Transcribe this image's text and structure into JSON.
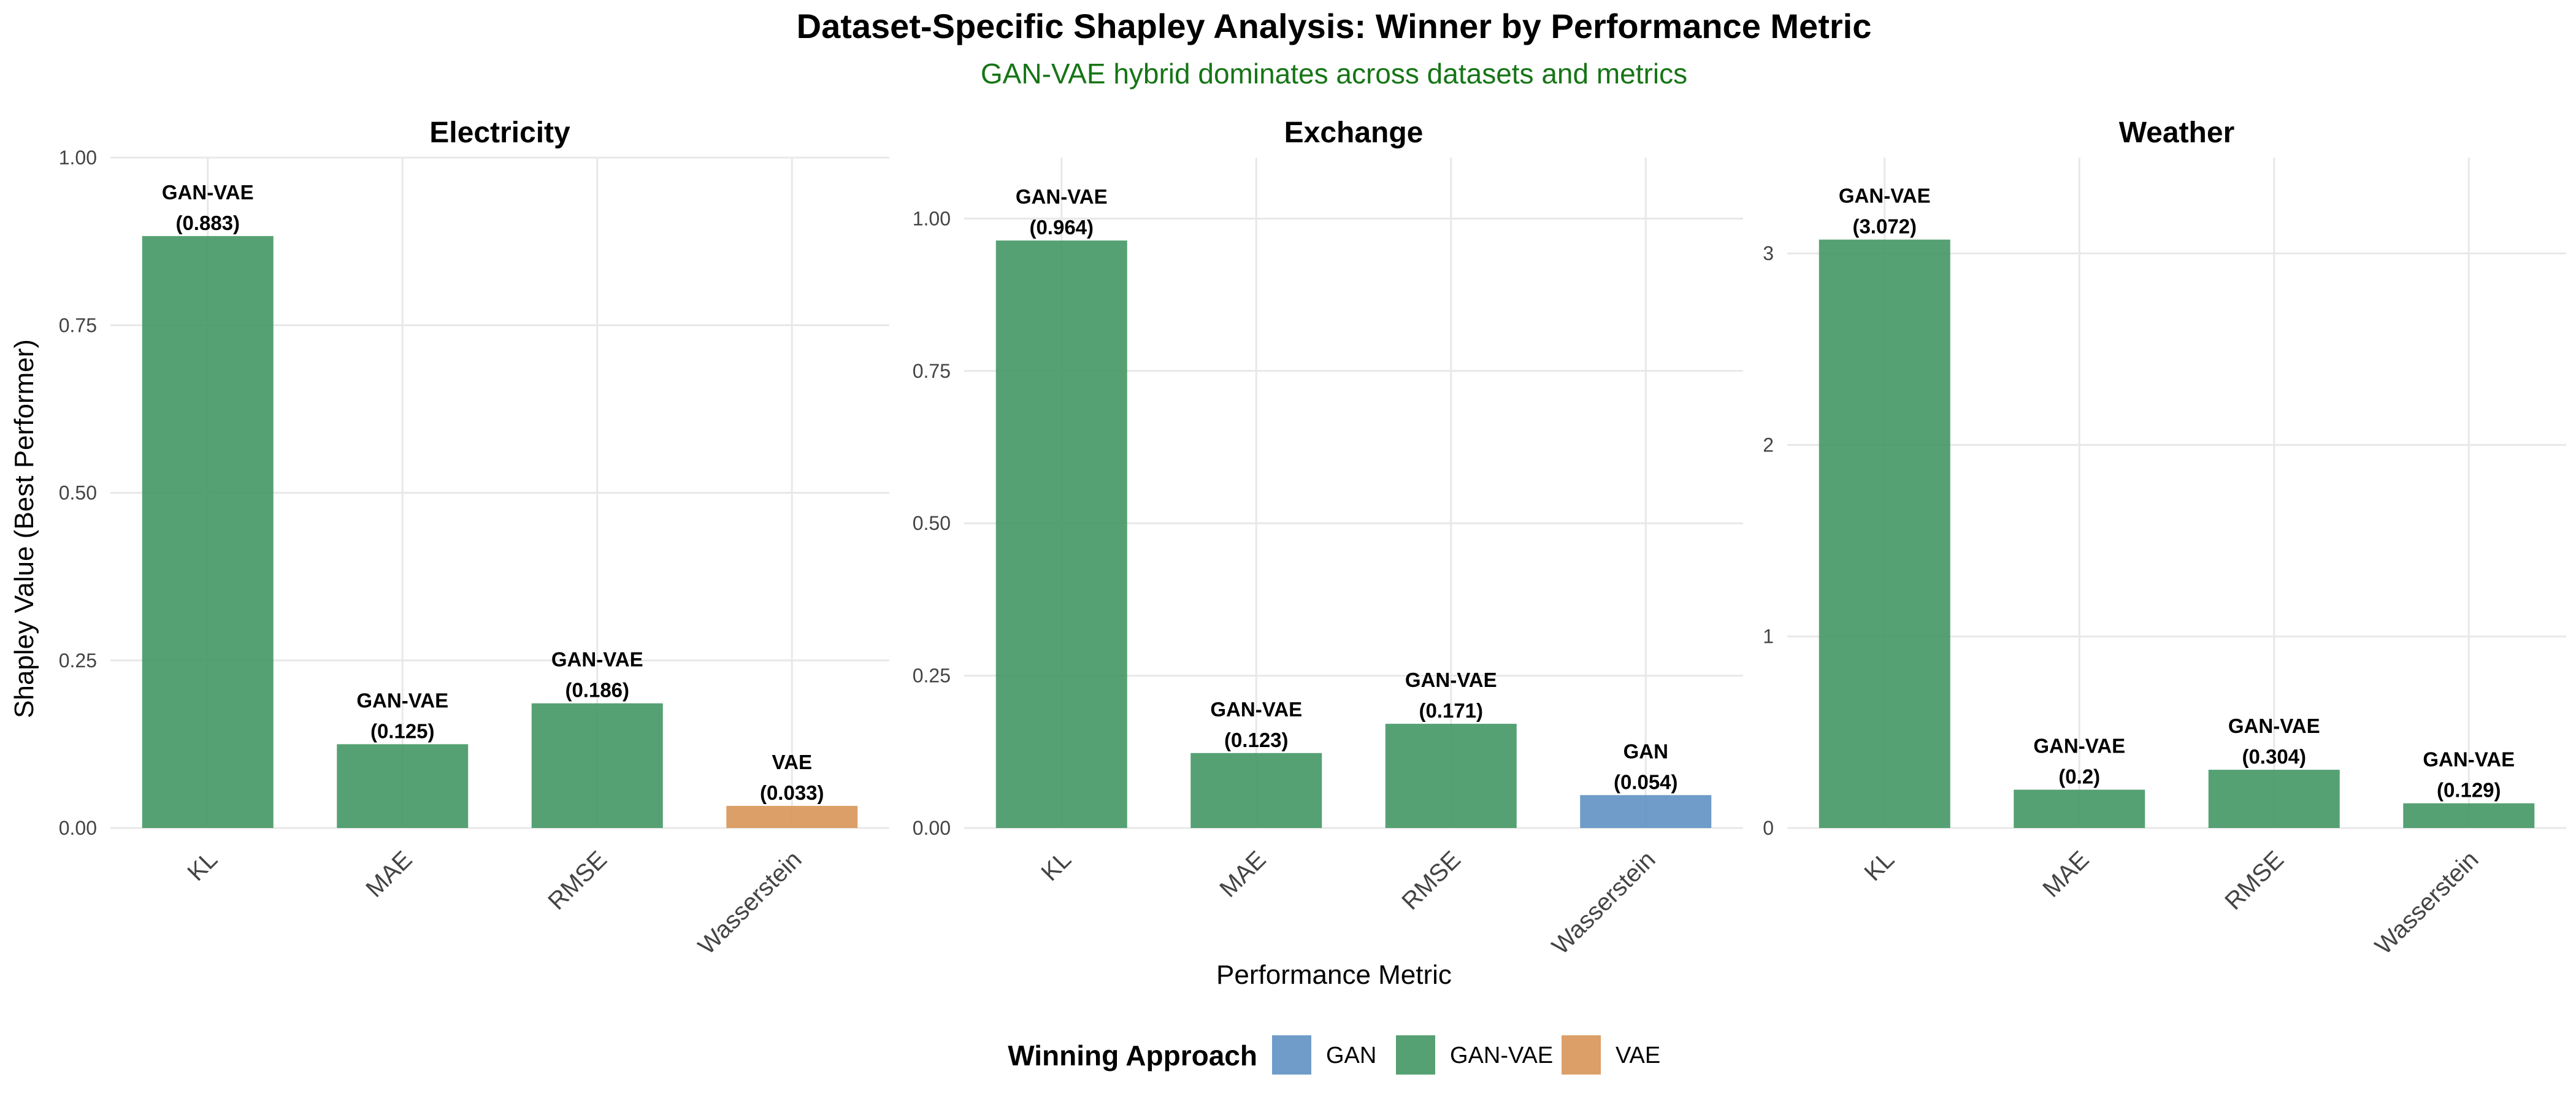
{
  "colors": {
    "GAN": "#5b8ec0",
    "GAN-VAE": "#3f9461",
    "VAE": "#d79253",
    "grid": "#e8e8e8",
    "subtitle": "#167516"
  },
  "chart_data": {
    "type": "bar",
    "title": "Dataset-Specific Shapley Analysis: Winner by Performance Metric",
    "subtitle": "GAN-VAE hybrid dominates across datasets and metrics",
    "xlabel": "Performance Metric",
    "ylabel": "Shapley Value (Best Performer)",
    "categories": [
      "KL",
      "MAE",
      "RMSE",
      "Wasserstein"
    ],
    "legend": {
      "title": "Winning Approach",
      "position": "bottom",
      "entries": [
        "GAN",
        "GAN-VAE",
        "VAE"
      ]
    },
    "grid": true,
    "facets": [
      {
        "name": "Electricity",
        "ylim": [
          0,
          1.0
        ],
        "yticks": [
          0,
          0.25,
          0.5,
          0.75,
          1.0
        ],
        "ytick_labels": [
          "0.00",
          "0.25",
          "0.50",
          "0.75",
          "1.00"
        ],
        "bars": [
          {
            "metric": "KL",
            "winner": "GAN-VAE",
            "value": 0.883,
            "value_label": "(0.883)"
          },
          {
            "metric": "MAE",
            "winner": "GAN-VAE",
            "value": 0.125,
            "value_label": "(0.125)"
          },
          {
            "metric": "RMSE",
            "winner": "GAN-VAE",
            "value": 0.186,
            "value_label": "(0.186)"
          },
          {
            "metric": "Wasserstein",
            "winner": "VAE",
            "value": 0.033,
            "value_label": "(0.033)"
          }
        ]
      },
      {
        "name": "Exchange",
        "ylim": [
          0,
          1.1
        ],
        "yticks": [
          0,
          0.25,
          0.5,
          0.75,
          1.0
        ],
        "ytick_labels": [
          "0.00",
          "0.25",
          "0.50",
          "0.75",
          "1.00"
        ],
        "bars": [
          {
            "metric": "KL",
            "winner": "GAN-VAE",
            "value": 0.964,
            "value_label": "(0.964)"
          },
          {
            "metric": "MAE",
            "winner": "GAN-VAE",
            "value": 0.123,
            "value_label": "(0.123)"
          },
          {
            "metric": "RMSE",
            "winner": "GAN-VAE",
            "value": 0.171,
            "value_label": "(0.171)"
          },
          {
            "metric": "Wasserstein",
            "winner": "GAN",
            "value": 0.054,
            "value_label": "(0.054)"
          }
        ]
      },
      {
        "name": "Weather",
        "ylim": [
          0,
          3.5
        ],
        "yticks": [
          0,
          1,
          2,
          3
        ],
        "ytick_labels": [
          "0",
          "1",
          "2",
          "3"
        ],
        "bars": [
          {
            "metric": "KL",
            "winner": "GAN-VAE",
            "value": 3.072,
            "value_label": "(3.072)"
          },
          {
            "metric": "MAE",
            "winner": "GAN-VAE",
            "value": 0.2,
            "value_label": "(0.2)"
          },
          {
            "metric": "RMSE",
            "winner": "GAN-VAE",
            "value": 0.304,
            "value_label": "(0.304)"
          },
          {
            "metric": "Wasserstein",
            "winner": "GAN-VAE",
            "value": 0.129,
            "value_label": "(0.129)"
          }
        ]
      }
    ]
  }
}
